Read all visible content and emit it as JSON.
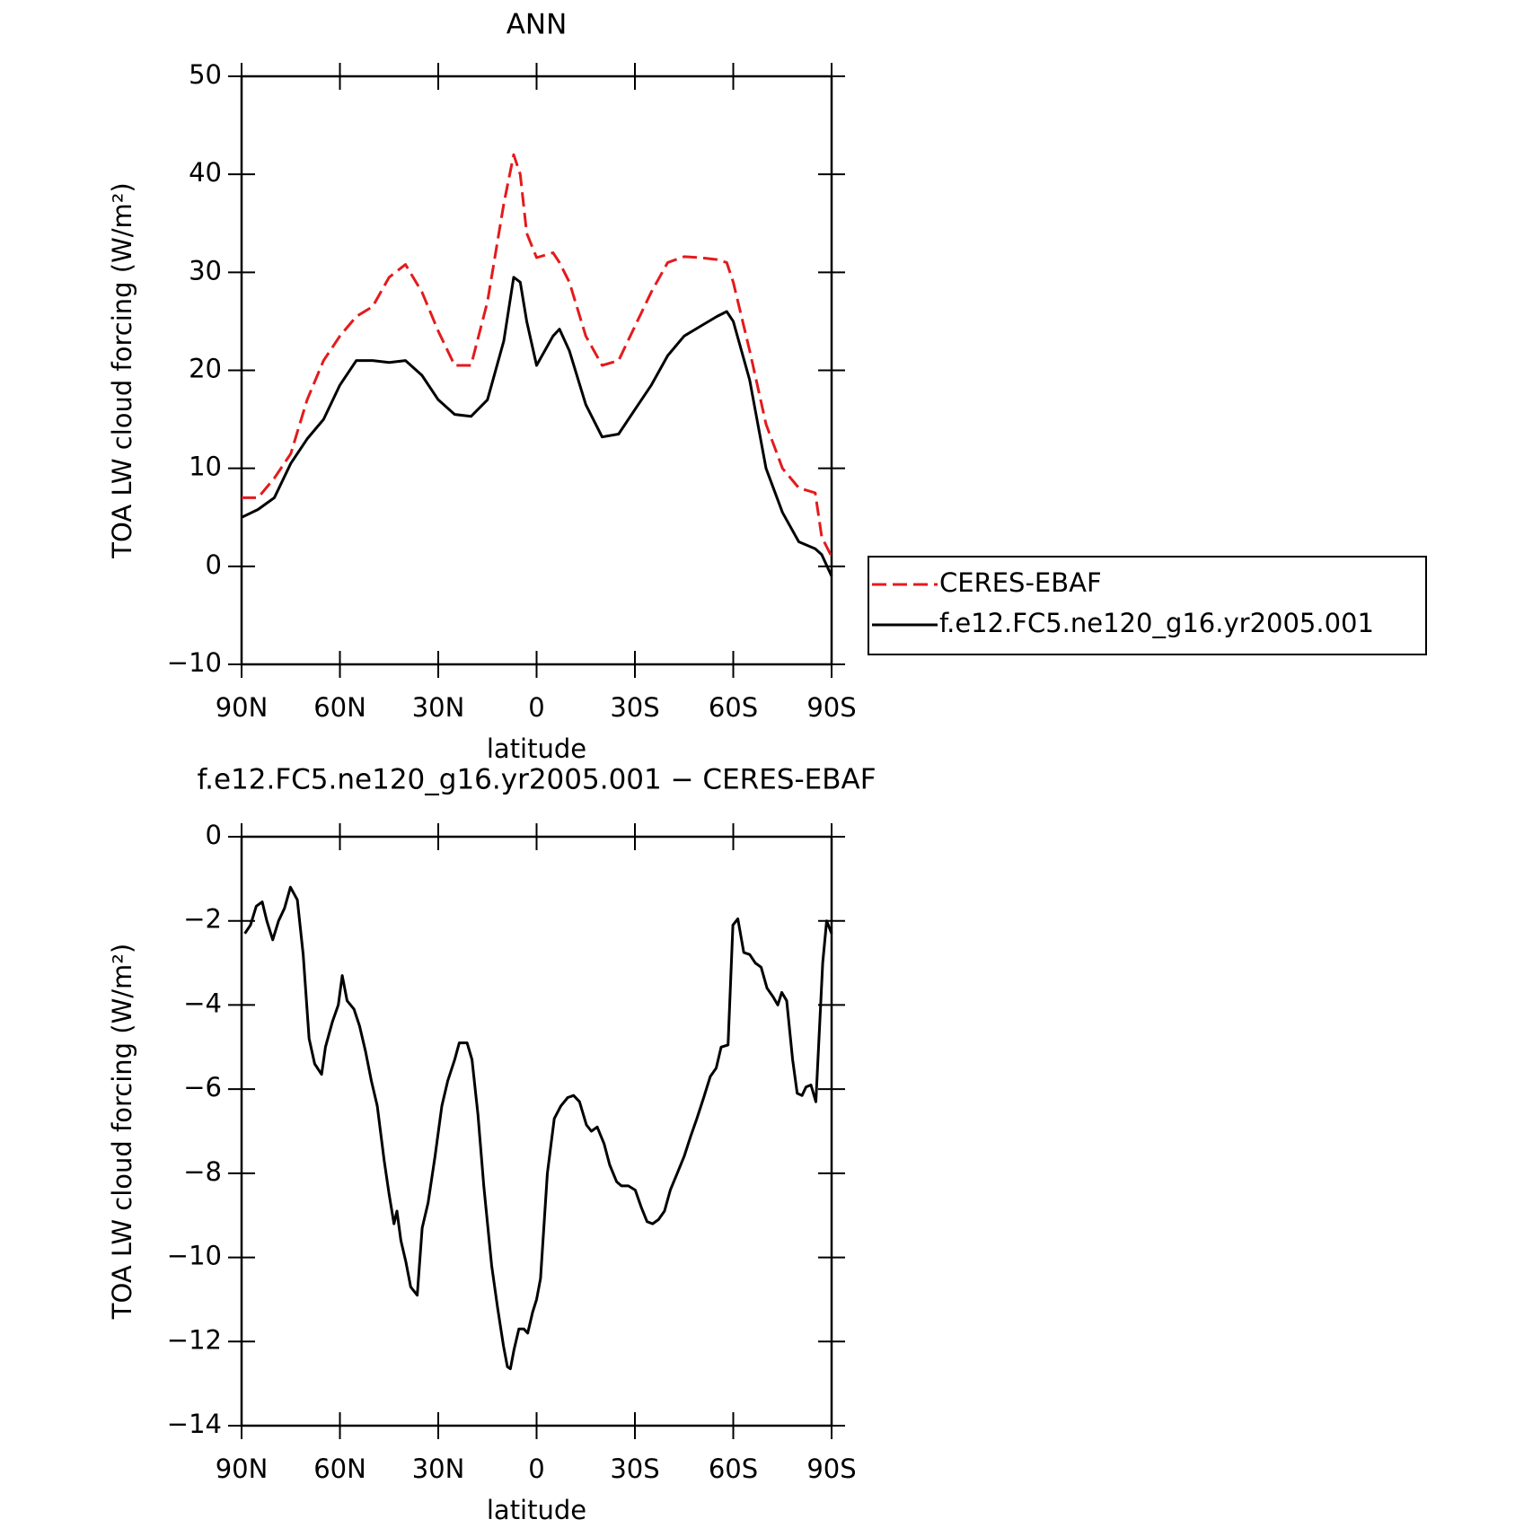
{
  "chart_data": [
    {
      "type": "line",
      "title": "ANN",
      "x_label": "latitude",
      "y_label": "TOA LW cloud forcing (W/m²)",
      "x": [
        90,
        85,
        80,
        75,
        70,
        65,
        60,
        55,
        50,
        45,
        40,
        35,
        30,
        25,
        20,
        15,
        10,
        7,
        5,
        3,
        0,
        -5,
        -7,
        -10,
        -15,
        -20,
        -25,
        -30,
        -35,
        -40,
        -45,
        -50,
        -55,
        -58,
        -60,
        -65,
        -70,
        -75,
        -80,
        -85,
        -87,
        -90
      ],
      "series": [
        {
          "name": "CERES-EBAF",
          "color": "#e41a1c",
          "dashed": true,
          "values": [
            7,
            7,
            9,
            11.5,
            17,
            21,
            23.5,
            25.5,
            26.5,
            29.5,
            30.8,
            28,
            24,
            20.5,
            20.5,
            27,
            37,
            42,
            40,
            34,
            31.5,
            32,
            31,
            29,
            23.5,
            20.5,
            21,
            24.5,
            28,
            31,
            31.6,
            31.5,
            31.3,
            31,
            29,
            22,
            14.5,
            10,
            8,
            7.5,
            3,
            1
          ]
        },
        {
          "name": "f.e12.FC5.ne120_g16.yr2005.001",
          "color": "#000000",
          "dashed": false,
          "values": [
            5,
            5.8,
            7,
            10.5,
            13,
            15,
            18.5,
            21,
            21,
            20.8,
            21,
            19.5,
            17,
            15.5,
            15.3,
            17,
            23,
            29.5,
            29,
            25,
            20.5,
            23.5,
            24.2,
            22,
            16.5,
            13.2,
            13.5,
            16,
            18.5,
            21.5,
            23.5,
            24.5,
            25.5,
            26,
            25,
            19,
            10,
            5.5,
            2.5,
            1.8,
            1.2,
            -1
          ]
        }
      ],
      "xlim": [
        90,
        -90
      ],
      "xticks": [
        {
          "value": 90,
          "label": "90N"
        },
        {
          "value": 60,
          "label": "60N"
        },
        {
          "value": 30,
          "label": "30N"
        },
        0,
        {
          "value": -30,
          "label": "30S"
        },
        {
          "value": -60,
          "label": "60S"
        },
        {
          "value": -90,
          "label": "90S"
        }
      ],
      "ylim": [
        -10,
        50
      ],
      "yticks": [
        {
          "value": -10,
          "label": "−10"
        },
        0,
        10,
        20,
        30,
        40,
        50
      ],
      "legend": "right"
    },
    {
      "type": "line",
      "title": "f.e12.FC5.ne120_g16.yr2005.001 − CERES-EBAF",
      "x_label": "latitude",
      "y_label": "TOA LW cloud forcing (W/m²)",
      "color": "#000000",
      "x": [
        89,
        87.3,
        85.5,
        83.7,
        82.3,
        80.5,
        78.7,
        76.9,
        75.1,
        73,
        71.2,
        69.4,
        67.7,
        65.6,
        64.4,
        62.3,
        60.5,
        59.3,
        57.8,
        55.7,
        54,
        52.2,
        50.4,
        48.6,
        46.5,
        45,
        43.5,
        42.6,
        41.4,
        39.9,
        38.4,
        36.4,
        34.9,
        33.1,
        31,
        28.9,
        27.1,
        25,
        23.6,
        21.2,
        19.7,
        17.9,
        16.1,
        13.7,
        11.9,
        10.1,
        8.9,
        8,
        6.9,
        5.4,
        3.9,
        2.7,
        1.2,
        0,
        -1.2,
        -3.3,
        -5.4,
        -7.4,
        -9.5,
        -11.3,
        -13.1,
        -15.2,
        -16.7,
        -18.5,
        -20.6,
        -22.3,
        -24.4,
        -25.9,
        -28,
        -30.1,
        -31.9,
        -33.7,
        -35.4,
        -37.2,
        -39,
        -40.8,
        -42.9,
        -45,
        -47.1,
        -48.9,
        -51,
        -53,
        -54.8,
        -56.3,
        -58.4,
        -59.9,
        -61.4,
        -63.2,
        -65,
        -66.7,
        -68.5,
        -70.3,
        -72.1,
        -73.6,
        -74.8,
        -76.3,
        -78.1,
        -79.5,
        -81,
        -82.2,
        -83.7,
        -85.2,
        -87.3,
        -88.5,
        -90
      ],
      "values": [
        -2.3,
        -2.1,
        -1.65,
        -1.55,
        -2,
        -2.45,
        -2,
        -1.7,
        -1.2,
        -1.5,
        -2.8,
        -4.8,
        -5.4,
        -5.65,
        -5,
        -4.4,
        -4,
        -3.3,
        -3.9,
        -4.1,
        -4.5,
        -5.1,
        -5.8,
        -6.4,
        -7.7,
        -8.5,
        -9.2,
        -8.9,
        -9.6,
        -10.1,
        -10.7,
        -10.9,
        -9.3,
        -8.7,
        -7.6,
        -6.4,
        -5.8,
        -5.3,
        -4.9,
        -4.9,
        -5.3,
        -6.6,
        -8.3,
        -10.2,
        -11.2,
        -12.1,
        -12.6,
        -12.65,
        -12.2,
        -11.7,
        -11.7,
        -11.8,
        -11.3,
        -11,
        -10.5,
        -8,
        -6.7,
        -6.4,
        -6.2,
        -6.15,
        -6.3,
        -6.85,
        -7,
        -6.9,
        -7.3,
        -7.8,
        -8.2,
        -8.3,
        -8.3,
        -8.4,
        -8.8,
        -9.15,
        -9.2,
        -9.1,
        -8.9,
        -8.4,
        -8,
        -7.6,
        -7.1,
        -6.7,
        -6.2,
        -5.7,
        -5.5,
        -5,
        -4.95,
        -2.1,
        -1.95,
        -2.75,
        -2.8,
        -3,
        -3.1,
        -3.6,
        -3.8,
        -4,
        -3.7,
        -3.9,
        -5.3,
        -6.1,
        -6.15,
        -5.95,
        -5.9,
        -6.3,
        -3,
        -2,
        -2.3
      ],
      "xlim": [
        90,
        -90
      ],
      "xticks": [
        {
          "value": 90,
          "label": "90N"
        },
        {
          "value": 60,
          "label": "60N"
        },
        {
          "value": 30,
          "label": "30N"
        },
        0,
        {
          "value": -30,
          "label": "30S"
        },
        {
          "value": -60,
          "label": "60S"
        },
        {
          "value": -90,
          "label": "90S"
        }
      ],
      "ylim": [
        -14,
        0
      ],
      "yticks": [
        {
          "value": -14,
          "label": "−14"
        },
        {
          "value": -12,
          "label": "−12"
        },
        {
          "value": -10,
          "label": "−10"
        },
        {
          "value": -8,
          "label": "−8"
        },
        {
          "value": -6,
          "label": "−6"
        },
        {
          "value": -4,
          "label": "−4"
        },
        {
          "value": -2,
          "label": "−2"
        },
        0
      ]
    }
  ]
}
